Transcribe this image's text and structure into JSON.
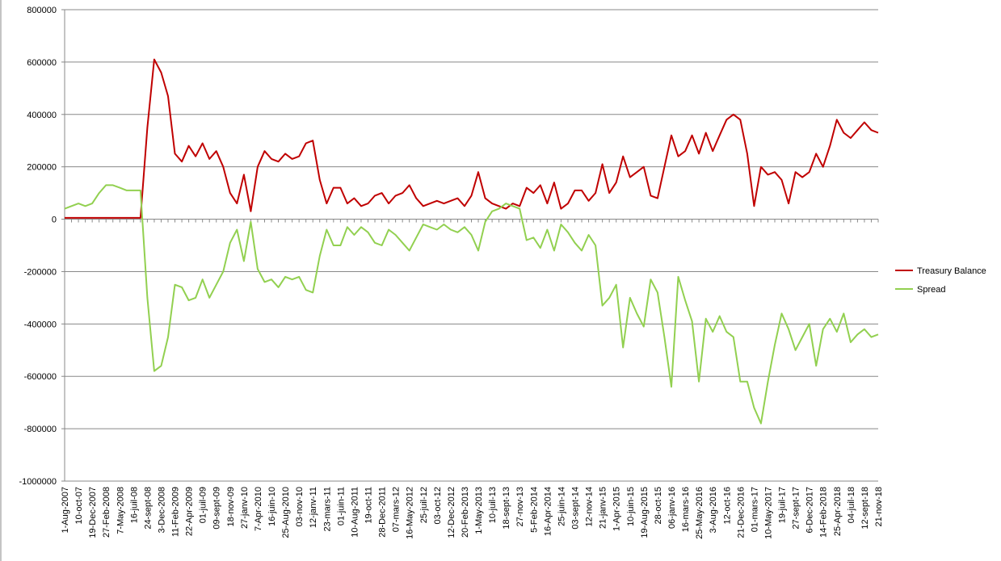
{
  "chart_data": {
    "type": "line",
    "categories": [
      "1-Aug-2007",
      null,
      "10-oct-07",
      null,
      "19-Dec-2007",
      null,
      "27-Feb-2008",
      null,
      "7-May-2008",
      null,
      "16-juil-08",
      null,
      "24-sept-08",
      null,
      "3-Dec-2008",
      null,
      "11-Feb-2009",
      null,
      "22-Apr-2009",
      null,
      "01-juil-09",
      null,
      "09-sept-09",
      null,
      "18-nov-09",
      null,
      "27-janv-10",
      null,
      "7-Apr-2010",
      null,
      "16-juin-10",
      null,
      "25-Aug-2010",
      null,
      "03-nov-10",
      null,
      "12-janv-11",
      null,
      "23-mars-11",
      null,
      "01-juin-11",
      null,
      "10-Aug-2011",
      null,
      "19-oct-11",
      null,
      "28-Dec-2011",
      null,
      "07-mars-12",
      null,
      "16-May-2012",
      null,
      "25-juil-12",
      null,
      "03-oct-12",
      null,
      "12-Dec-2012",
      null,
      "20-Feb-2013",
      null,
      "1-May-2013",
      null,
      "10-juil-13",
      null,
      "18-sept-13",
      null,
      "27-nov-13",
      null,
      "5-Feb-2014",
      null,
      "16-Apr-2014",
      null,
      "25-juin-14",
      null,
      "03-sept-14",
      null,
      "12-nov-14",
      null,
      "21-janv-15",
      null,
      "1-Apr-2015",
      null,
      "10-juin-15",
      null,
      "19-Aug-2015",
      null,
      "28-oct-15",
      null,
      "06-janv-16",
      null,
      "16-mars-16",
      null,
      "25-May-2016",
      null,
      "3-Aug-2016",
      null,
      "12-oct-16",
      null,
      "21-Dec-2016",
      null,
      "01-mars-17",
      null,
      "10-May-2017",
      null,
      "19-juil-17",
      null,
      "27-sept-17",
      null,
      "6-Dec-2017",
      null,
      "14-Feb-2018",
      null,
      "25-Apr-2018",
      null,
      "04-juil-18",
      null,
      "12-sept-18",
      null,
      "21-nov-18"
    ],
    "series": [
      {
        "name": "Treasury Balance",
        "color": "#c00000",
        "values": [
          5000,
          5000,
          5000,
          5000,
          5000,
          5000,
          5000,
          5000,
          5000,
          5000,
          5000,
          5000,
          350000,
          610000,
          560000,
          470000,
          250000,
          220000,
          280000,
          240000,
          290000,
          230000,
          260000,
          200000,
          100000,
          60000,
          170000,
          30000,
          200000,
          260000,
          230000,
          220000,
          250000,
          230000,
          240000,
          290000,
          300000,
          150000,
          60000,
          120000,
          120000,
          60000,
          80000,
          50000,
          60000,
          90000,
          100000,
          60000,
          90000,
          100000,
          130000,
          80000,
          50000,
          60000,
          70000,
          60000,
          70000,
          80000,
          50000,
          90000,
          180000,
          80000,
          60000,
          50000,
          40000,
          60000,
          50000,
          120000,
          100000,
          130000,
          60000,
          140000,
          40000,
          60000,
          110000,
          110000,
          70000,
          100000,
          210000,
          100000,
          140000,
          240000,
          160000,
          180000,
          200000,
          90000,
          80000,
          200000,
          320000,
          240000,
          260000,
          320000,
          250000,
          330000,
          260000,
          320000,
          380000,
          400000,
          380000,
          250000,
          50000,
          200000,
          170000,
          180000,
          150000,
          60000,
          180000,
          160000,
          180000,
          250000,
          200000,
          280000,
          380000,
          330000,
          310000,
          340000,
          370000,
          340000,
          330000
        ]
      },
      {
        "name": "Spread",
        "color": "#92d050",
        "values": [
          40000,
          50000,
          60000,
          50000,
          60000,
          100000,
          130000,
          130000,
          120000,
          110000,
          110000,
          110000,
          -300000,
          -580000,
          -560000,
          -450000,
          -250000,
          -260000,
          -310000,
          -300000,
          -230000,
          -300000,
          -250000,
          -200000,
          -90000,
          -40000,
          -160000,
          -10000,
          -190000,
          -240000,
          -230000,
          -260000,
          -220000,
          -230000,
          -220000,
          -270000,
          -280000,
          -140000,
          -40000,
          -100000,
          -100000,
          -30000,
          -60000,
          -30000,
          -50000,
          -90000,
          -100000,
          -40000,
          -60000,
          -90000,
          -120000,
          -70000,
          -20000,
          -30000,
          -40000,
          -20000,
          -40000,
          -50000,
          -30000,
          -60000,
          -120000,
          -10000,
          30000,
          40000,
          60000,
          50000,
          40000,
          -80000,
          -70000,
          -110000,
          -40000,
          -120000,
          -20000,
          -50000,
          -90000,
          -120000,
          -60000,
          -100000,
          -330000,
          -300000,
          -250000,
          -490000,
          -300000,
          -360000,
          -410000,
          -230000,
          -280000,
          -450000,
          -640000,
          -220000,
          -310000,
          -390000,
          -620000,
          -380000,
          -430000,
          -370000,
          -430000,
          -450000,
          -620000,
          -620000,
          -720000,
          -780000,
          -620000,
          -480000,
          -360000,
          -420000,
          -500000,
          -450000,
          -400000,
          -560000,
          -420000,
          -380000,
          -430000,
          -360000,
          -470000,
          -440000,
          -420000,
          -450000,
          -440000
        ]
      }
    ],
    "ylim": [
      -1000000,
      800000
    ],
    "yticks": [
      -1000000,
      -800000,
      -600000,
      -400000,
      -200000,
      0,
      200000,
      400000,
      600000,
      800000
    ],
    "grid": true,
    "legend": "right"
  }
}
